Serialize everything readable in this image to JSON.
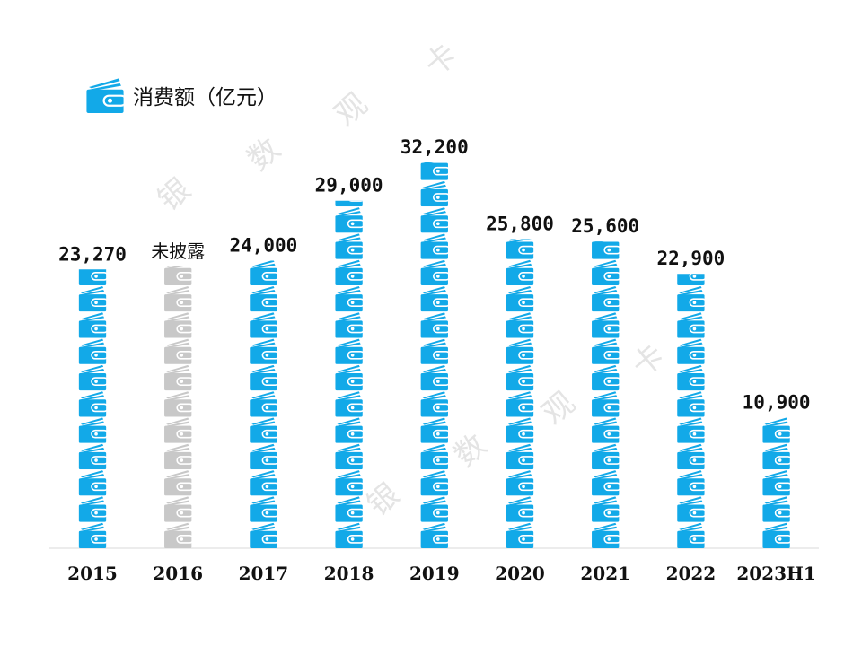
{
  "legend": {
    "label": "消费额（亿元）",
    "icon": "wallet-icon"
  },
  "watermark": [
    "银",
    "数",
    "观",
    "卡"
  ],
  "colors": {
    "primary": "#12a9e8",
    "undisclosed": "#c8c8c8",
    "axis": "#d9d9d9"
  },
  "chart_data": {
    "type": "bar",
    "style": "pictograph",
    "categories": [
      "2015",
      "2016",
      "2017",
      "2018",
      "2019",
      "2020",
      "2021",
      "2022",
      "2023H1"
    ],
    "values": [
      23270,
      null,
      24000,
      29000,
      32200,
      25800,
      25600,
      22900,
      10900
    ],
    "data_labels": [
      "23,270",
      "未披露",
      "24,000",
      "29,000",
      "32,200",
      "25,800",
      "25,600",
      "22,900",
      "10,900"
    ],
    "series": [
      {
        "name": "消费额（亿元）",
        "values": [
          23270,
          null,
          24000,
          29000,
          32200,
          25800,
          25600,
          22900,
          10900
        ]
      }
    ],
    "ylim": [
      0,
      32200
    ],
    "grid": false,
    "legend_position": "top-left"
  }
}
